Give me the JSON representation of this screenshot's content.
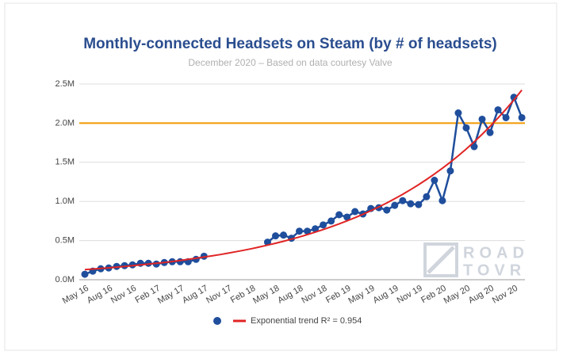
{
  "chart_data": {
    "type": "line",
    "title": "Monthly-connected Headsets on Steam (by # of headsets)",
    "subtitle": "December 2020 – Based on data courtesy Valve",
    "categories": [
      "May 16",
      null,
      null,
      "Aug 16",
      null,
      null,
      "Nov 16",
      null,
      null,
      "Feb 17",
      null,
      null,
      "May 17",
      null,
      null,
      "Aug 17",
      null,
      null,
      "Nov 17",
      null,
      null,
      "Feb 18",
      null,
      null,
      "May 18",
      null,
      null,
      "Aug 18",
      null,
      null,
      "Nov 18",
      null,
      null,
      "Feb 19",
      null,
      null,
      "May 19",
      null,
      null,
      "Aug 19",
      null,
      null,
      "Nov 19",
      null,
      null,
      "Feb 20",
      null,
      null,
      "May 20",
      null,
      null,
      "Aug 20",
      null,
      null,
      "Nov 20",
      null
    ],
    "series": [
      {
        "color": "#1f4e9c",
        "values": [
          0.07,
          0.11,
          0.14,
          0.15,
          0.17,
          0.18,
          0.19,
          0.21,
          0.21,
          0.2,
          0.22,
          0.23,
          0.23,
          0.23,
          0.26,
          0.3,
          null,
          null,
          null,
          null,
          null,
          null,
          null,
          0.48,
          0.56,
          0.57,
          0.53,
          0.62,
          0.62,
          0.65,
          0.7,
          0.75,
          0.83,
          0.8,
          0.87,
          0.84,
          0.91,
          0.92,
          0.89,
          0.95,
          1.01,
          0.97,
          0.96,
          1.06,
          1.27,
          1.01,
          1.39,
          2.13,
          1.94,
          1.7,
          2.05,
          1.88,
          2.17,
          2.07,
          2.33,
          2.07
        ]
      },
      {
        "name": "Exponential trend R² = 0.954",
        "color": "#e02424",
        "values": [
          0.13,
          0.137,
          0.145,
          0.152,
          0.161,
          0.17,
          0.179,
          0.189,
          0.199,
          0.21,
          0.221,
          0.233,
          0.246,
          0.26,
          0.274,
          0.289,
          0.305,
          0.321,
          0.339,
          0.357,
          0.377,
          0.397,
          0.419,
          0.442,
          0.466,
          0.491,
          0.518,
          0.546,
          0.576,
          0.608,
          0.641,
          0.676,
          0.713,
          0.752,
          0.793,
          0.836,
          0.882,
          0.93,
          0.981,
          1.035,
          1.091,
          1.151,
          1.214,
          1.28,
          1.35,
          1.424,
          1.501,
          1.583,
          1.67,
          1.761,
          1.857,
          1.959,
          2.066,
          2.178,
          2.297,
          2.423
        ]
      }
    ],
    "reference_line": {
      "value": 2.0,
      "color": "#f29900"
    },
    "ylim": [
      0,
      2.5
    ],
    "yticks": [
      {
        "value": 0,
        "label": "0.0M"
      },
      {
        "value": 0.5,
        "label": "0.5M"
      },
      {
        "value": 1.0,
        "label": "1.0M"
      },
      {
        "value": 1.5,
        "label": "1.5M"
      },
      {
        "value": 2.0,
        "label": "2.0M"
      },
      {
        "value": 2.5,
        "label": "2.5M"
      }
    ],
    "grid": true,
    "watermark": [
      "ROAD",
      "TOVR"
    ]
  }
}
